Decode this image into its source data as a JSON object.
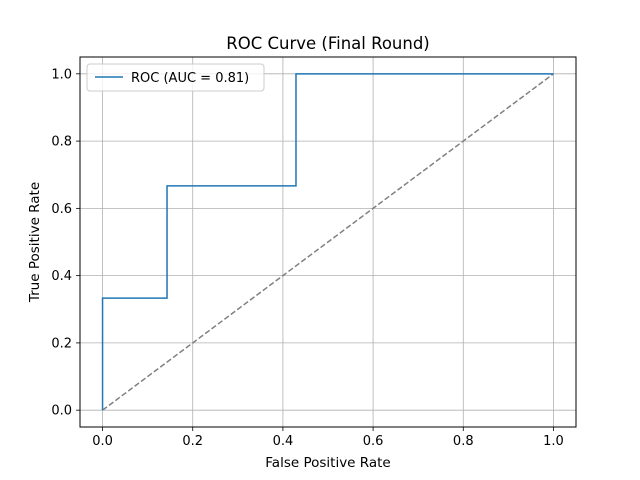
{
  "chart_data": {
    "type": "line",
    "title": "ROC Curve (Final Round)",
    "xlabel": "False Positive Rate",
    "ylabel": "True Positive Rate",
    "xlim": [
      -0.05,
      1.05
    ],
    "ylim": [
      -0.05,
      1.05
    ],
    "grid": true,
    "legend_position": "top-left",
    "x_ticks": [
      0.0,
      0.2,
      0.4,
      0.6,
      0.8,
      1.0
    ],
    "y_ticks": [
      0.0,
      0.2,
      0.4,
      0.6,
      0.8,
      1.0
    ],
    "x_tick_labels": [
      "0.0",
      "0.2",
      "0.4",
      "0.6",
      "0.8",
      "1.0"
    ],
    "y_tick_labels": [
      "0.0",
      "0.2",
      "0.4",
      "0.6",
      "0.8",
      "1.0"
    ],
    "series": [
      {
        "name": "ROC (AUC = 0.81)",
        "color": "#1f77b4",
        "style": "solid",
        "x": [
          0.0,
          0.0,
          0.0,
          0.143,
          0.143,
          0.429,
          0.429,
          1.0
        ],
        "y": [
          0.0,
          0.333,
          0.333,
          0.333,
          0.667,
          0.667,
          1.0,
          1.0
        ]
      },
      {
        "color": "#808080",
        "style": "dashed",
        "x": [
          0.0,
          1.0
        ],
        "y": [
          0.0,
          1.0
        ]
      }
    ]
  }
}
